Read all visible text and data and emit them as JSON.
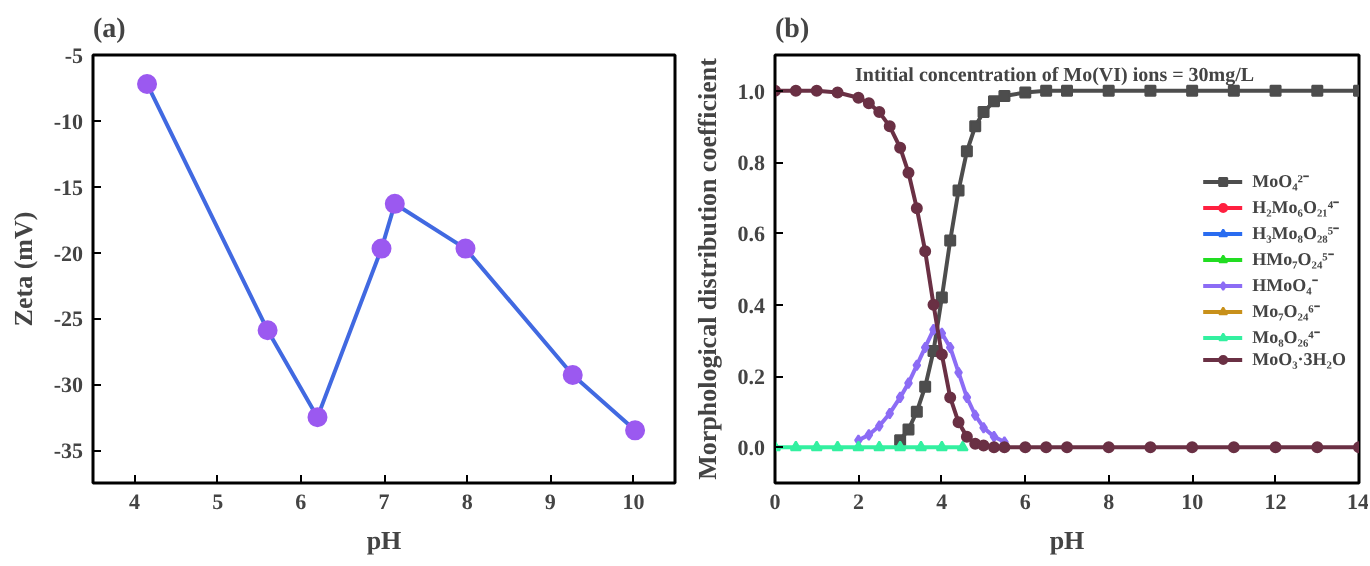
{
  "chart_data": [
    {
      "type": "line",
      "title": "(a)",
      "xlabel": "pH",
      "ylabel": "Zeta (mV)",
      "xlim": [
        3.5,
        10.5
      ],
      "xticks": [
        4,
        5,
        6,
        7,
        8,
        9,
        10
      ],
      "ylim": [
        -37.5,
        -5
      ],
      "yticks": [
        -35,
        -30,
        -25,
        -20,
        -15,
        -10,
        -5
      ],
      "grid": false,
      "marker": "circle",
      "series": [
        {
          "color": "#4169e1",
          "colors": [
            "#9b59f0",
            "#9b59f0",
            "#9b59f0",
            "#9b59f0",
            "#9b59f0",
            "#9b59f0",
            "#9b59f0",
            "#9b59f0"
          ],
          "x": [
            4.15,
            5.6,
            6.2,
            6.97,
            7.13,
            7.98,
            9.27,
            10.02
          ],
          "values": [
            -7.2,
            -25.9,
            -32.5,
            -19.7,
            -16.3,
            -19.7,
            -29.3,
            -33.5
          ]
        }
      ]
    },
    {
      "type": "line",
      "title": "(b)",
      "xlabel": "pH",
      "ylabel": "Morphological distribution coefficient",
      "annotations": [
        "Intitial concentration of Mo(VI) ions = 30mg/L"
      ],
      "xlim": [
        0,
        14
      ],
      "xticks": [
        0,
        2,
        4,
        6,
        8,
        10,
        12,
        14
      ],
      "ylim": [
        -0.1,
        1.1
      ],
      "yticks": [
        {
          "value": 0,
          "label": "0.0"
        },
        0.2,
        0.4,
        0.6,
        0.8,
        {
          "value": 1,
          "label": "1.0"
        }
      ],
      "grid": false,
      "legend": "right",
      "x": [
        0,
        0.5,
        1,
        1.5,
        2,
        2.25,
        2.5,
        2.75,
        3,
        3.2,
        3.4,
        3.6,
        3.8,
        4.0,
        4.2,
        4.4,
        4.6,
        4.8,
        5.0,
        5.25,
        5.5,
        6,
        6.5,
        7,
        8,
        9,
        10,
        11,
        12,
        13,
        14
      ],
      "series": [
        {
          "name": "MoO₄²⁻",
          "color": "#4d4d4d",
          "marker": "square",
          "values": [
            null,
            null,
            null,
            null,
            null,
            null,
            null,
            null,
            0.02,
            0.05,
            0.1,
            0.17,
            0.27,
            0.42,
            0.58,
            0.72,
            0.83,
            0.9,
            0.94,
            0.97,
            0.985,
            0.995,
            1,
            1,
            1,
            1,
            1,
            1,
            1,
            1,
            1
          ]
        },
        {
          "name": "H₂Mo₆O₂₁⁴⁻",
          "color": "#ff2040",
          "marker": "circle",
          "values": [
            null,
            null,
            null,
            null,
            null,
            null,
            null,
            null,
            null,
            null,
            null,
            null,
            null,
            null,
            null,
            null,
            null,
            null,
            null,
            null,
            null,
            null,
            null,
            null,
            null,
            null,
            null,
            null,
            null,
            null,
            null
          ]
        },
        {
          "name": "H₃Mo₈O₂₈⁵⁻",
          "color": "#2a6cf0",
          "marker": "triangle",
          "values": [
            null,
            null,
            null,
            null,
            null,
            null,
            null,
            null,
            null,
            null,
            null,
            null,
            null,
            null,
            null,
            null,
            null,
            null,
            null,
            null,
            null,
            null,
            null,
            null,
            null,
            null,
            null,
            null,
            null,
            null,
            null
          ]
        },
        {
          "name": "HMo₇O₂₄⁵⁻",
          "color": "#22dd22",
          "marker": "triangle",
          "values": [
            null,
            null,
            null,
            null,
            null,
            null,
            null,
            null,
            null,
            null,
            null,
            null,
            null,
            null,
            null,
            null,
            null,
            null,
            null,
            null,
            null,
            null,
            null,
            null,
            null,
            null,
            null,
            null,
            null,
            null,
            null
          ]
        },
        {
          "name": "HMoO₄⁻",
          "color": "#8c6cf5",
          "marker": "diamond",
          "values": [
            null,
            null,
            null,
            null,
            0.02,
            0.035,
            0.06,
            0.095,
            0.14,
            0.18,
            0.23,
            0.28,
            0.33,
            0.32,
            0.28,
            0.21,
            0.14,
            0.09,
            0.055,
            0.03,
            0.015,
            null,
            null,
            null,
            null,
            null,
            null,
            null,
            null,
            null,
            null
          ]
        },
        {
          "name": "Mo₇O₂₄⁶⁻",
          "color": "#c8901a",
          "marker": "triangle",
          "values": [
            null,
            null,
            null,
            null,
            null,
            null,
            null,
            null,
            null,
            null,
            null,
            null,
            null,
            null,
            null,
            null,
            null,
            null,
            null,
            null,
            null,
            null,
            null,
            null,
            null,
            null,
            null,
            null,
            null,
            null,
            null
          ]
        },
        {
          "name": "Mo₈O₂₆⁴⁻",
          "color": "#33f0a0",
          "marker": "triangle",
          "x": [
            0,
            0.5,
            1,
            1.5,
            2,
            2.5,
            3,
            3.5,
            4,
            4.5
          ],
          "values": [
            0,
            0,
            0,
            0,
            0,
            0,
            0,
            0,
            0,
            0
          ]
        },
        {
          "name": "MoO₃·3H₂O",
          "color": "#6a3044",
          "marker": "circle",
          "values": [
            1,
            1,
            1,
            0.995,
            0.98,
            0.965,
            0.94,
            0.9,
            0.84,
            0.77,
            0.67,
            0.55,
            0.4,
            0.26,
            0.14,
            0.07,
            0.03,
            0.01,
            0.005,
            0,
            0,
            0,
            0,
            0,
            0,
            0,
            0,
            0,
            0,
            0,
            0
          ]
        }
      ]
    }
  ]
}
